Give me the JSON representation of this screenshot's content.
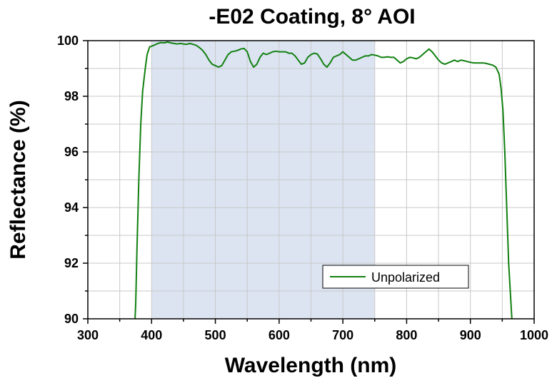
{
  "chart_data": {
    "type": "line",
    "title": "-E02 Coating, 8° AOI",
    "xlabel": "Wavelength (nm)",
    "ylabel": "Reflectance (%)",
    "xlim": [
      300,
      1000
    ],
    "ylim": [
      90,
      100
    ],
    "x_ticks": [
      300,
      400,
      500,
      600,
      700,
      800,
      900,
      1000
    ],
    "y_ticks": [
      90,
      92,
      94,
      96,
      98,
      100
    ],
    "grid": true,
    "legend_position": "bottom-right",
    "highlight_band": {
      "x_range": [
        400,
        750
      ],
      "color": "#dce4f2"
    },
    "series": [
      {
        "name": "Unpolarized",
        "color": "#118011",
        "points": [
          [
            374,
            90.0
          ],
          [
            375,
            90.5
          ],
          [
            377,
            92.5
          ],
          [
            380,
            95.0
          ],
          [
            383,
            97.0
          ],
          [
            386,
            98.2
          ],
          [
            390,
            99.0
          ],
          [
            393,
            99.5
          ],
          [
            397,
            99.78
          ],
          [
            400,
            99.8
          ],
          [
            405,
            99.85
          ],
          [
            410,
            99.9
          ],
          [
            415,
            99.93
          ],
          [
            420,
            99.92
          ],
          [
            425,
            99.95
          ],
          [
            430,
            99.92
          ],
          [
            435,
            99.9
          ],
          [
            440,
            99.88
          ],
          [
            445,
            99.9
          ],
          [
            450,
            99.88
          ],
          [
            455,
            99.87
          ],
          [
            460,
            99.9
          ],
          [
            465,
            99.87
          ],
          [
            470,
            99.83
          ],
          [
            475,
            99.75
          ],
          [
            480,
            99.65
          ],
          [
            485,
            99.5
          ],
          [
            490,
            99.3
          ],
          [
            495,
            99.15
          ],
          [
            500,
            99.1
          ],
          [
            505,
            99.05
          ],
          [
            510,
            99.1
          ],
          [
            515,
            99.3
          ],
          [
            520,
            99.5
          ],
          [
            525,
            99.6
          ],
          [
            530,
            99.62
          ],
          [
            535,
            99.65
          ],
          [
            540,
            99.7
          ],
          [
            545,
            99.72
          ],
          [
            550,
            99.6
          ],
          [
            555,
            99.25
          ],
          [
            560,
            99.05
          ],
          [
            565,
            99.15
          ],
          [
            570,
            99.4
          ],
          [
            575,
            99.55
          ],
          [
            580,
            99.5
          ],
          [
            585,
            99.55
          ],
          [
            590,
            99.6
          ],
          [
            595,
            99.62
          ],
          [
            600,
            99.6
          ],
          [
            605,
            99.6
          ],
          [
            610,
            99.6
          ],
          [
            615,
            99.55
          ],
          [
            620,
            99.55
          ],
          [
            625,
            99.45
          ],
          [
            630,
            99.3
          ],
          [
            635,
            99.15
          ],
          [
            640,
            99.2
          ],
          [
            645,
            99.4
          ],
          [
            650,
            99.5
          ],
          [
            655,
            99.55
          ],
          [
            660,
            99.52
          ],
          [
            665,
            99.35
          ],
          [
            670,
            99.15
          ],
          [
            675,
            99.05
          ],
          [
            680,
            99.2
          ],
          [
            685,
            99.4
          ],
          [
            690,
            99.45
          ],
          [
            695,
            99.5
          ],
          [
            700,
            99.6
          ],
          [
            705,
            99.5
          ],
          [
            710,
            99.4
          ],
          [
            715,
            99.3
          ],
          [
            720,
            99.3
          ],
          [
            725,
            99.35
          ],
          [
            730,
            99.4
          ],
          [
            735,
            99.45
          ],
          [
            740,
            99.45
          ],
          [
            745,
            99.5
          ],
          [
            750,
            99.48
          ],
          [
            755,
            99.45
          ],
          [
            760,
            99.4
          ],
          [
            765,
            99.4
          ],
          [
            770,
            99.42
          ],
          [
            775,
            99.4
          ],
          [
            780,
            99.4
          ],
          [
            785,
            99.3
          ],
          [
            790,
            99.2
          ],
          [
            795,
            99.25
          ],
          [
            800,
            99.35
          ],
          [
            805,
            99.4
          ],
          [
            810,
            99.38
          ],
          [
            815,
            99.35
          ],
          [
            820,
            99.4
          ],
          [
            825,
            99.5
          ],
          [
            830,
            99.6
          ],
          [
            835,
            99.7
          ],
          [
            840,
            99.6
          ],
          [
            845,
            99.45
          ],
          [
            850,
            99.3
          ],
          [
            855,
            99.2
          ],
          [
            860,
            99.15
          ],
          [
            865,
            99.2
          ],
          [
            870,
            99.25
          ],
          [
            875,
            99.3
          ],
          [
            880,
            99.25
          ],
          [
            885,
            99.3
          ],
          [
            890,
            99.28
          ],
          [
            895,
            99.25
          ],
          [
            900,
            99.22
          ],
          [
            905,
            99.2
          ],
          [
            910,
            99.2
          ],
          [
            915,
            99.2
          ],
          [
            920,
            99.2
          ],
          [
            925,
            99.18
          ],
          [
            930,
            99.15
          ],
          [
            935,
            99.12
          ],
          [
            940,
            99.05
          ],
          [
            945,
            98.8
          ],
          [
            948,
            98.3
          ],
          [
            951,
            97.5
          ],
          [
            954,
            96.0
          ],
          [
            957,
            94.0
          ],
          [
            960,
            92.0
          ],
          [
            963,
            90.8
          ],
          [
            965,
            90.0
          ]
        ]
      }
    ]
  }
}
